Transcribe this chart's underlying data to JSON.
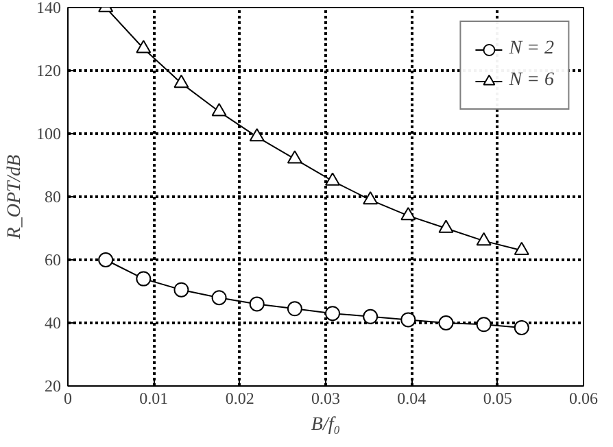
{
  "chart_data": {
    "type": "line",
    "xlabel": "B/f₀",
    "ylabel": "R_OPT/dB",
    "x": [
      0.0044,
      0.0088,
      0.0132,
      0.0176,
      0.022,
      0.0264,
      0.0308,
      0.0352,
      0.0396,
      0.044,
      0.0484,
      0.0528
    ],
    "series": [
      {
        "name": "N = 2",
        "color": "#000000",
        "marker": "circle",
        "values": [
          60,
          54,
          50.5,
          48,
          46,
          44.5,
          43,
          42,
          41,
          40,
          39.5,
          38.5
        ]
      },
      {
        "name": "N = 6",
        "color": "#000000",
        "marker": "triangle",
        "values": [
          140,
          127,
          116,
          107,
          99,
          92,
          85,
          79,
          74,
          70,
          66,
          63
        ]
      }
    ],
    "xlim": [
      0,
      0.06
    ],
    "xticks": [
      0,
      0.01,
      0.02,
      0.03,
      0.04,
      0.05,
      0.06
    ],
    "ylim": [
      20,
      140
    ],
    "yticks": [
      20,
      40,
      60,
      80,
      100,
      120,
      140
    ],
    "grid": true,
    "legend": "top right",
    "line_style": "solid"
  }
}
